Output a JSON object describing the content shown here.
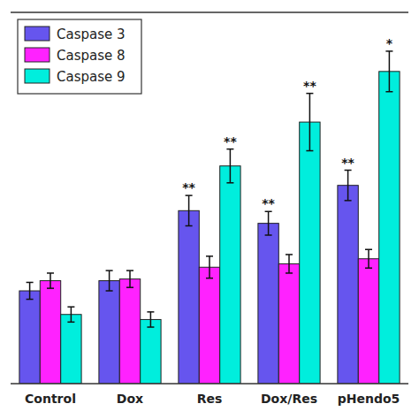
{
  "chart_data": {
    "type": "bar",
    "categories": [
      "Control",
      "Dox",
      "Res",
      "Dox/Res",
      "pHendo5"
    ],
    "series": [
      {
        "name": "Caspase 3",
        "color": "#6655ee",
        "values": [
          1.1,
          1.22,
          2.05,
          1.9,
          2.35
        ],
        "errors": [
          0.1,
          0.12,
          0.18,
          0.14,
          0.18
        ],
        "annotations": [
          null,
          null,
          "**",
          "**",
          "**"
        ]
      },
      {
        "name": "Caspase 8",
        "color": "#ff22ff",
        "values": [
          1.22,
          1.24,
          1.38,
          1.42,
          1.48
        ],
        "errors": [
          0.09,
          0.1,
          0.13,
          0.11,
          0.11
        ],
        "annotations": [
          null,
          null,
          null,
          null,
          null
        ]
      },
      {
        "name": "Caspase 9",
        "color": "#00eedd",
        "values": [
          0.82,
          0.76,
          2.58,
          3.1,
          3.7
        ],
        "errors": [
          0.09,
          0.09,
          0.2,
          0.34,
          0.24
        ],
        "annotations": [
          null,
          null,
          "**",
          "**",
          "*"
        ]
      }
    ],
    "ylim": [
      0,
      4.4
    ],
    "yticks": [],
    "tick_labels": "x",
    "grid": false,
    "legend": "upper left"
  }
}
